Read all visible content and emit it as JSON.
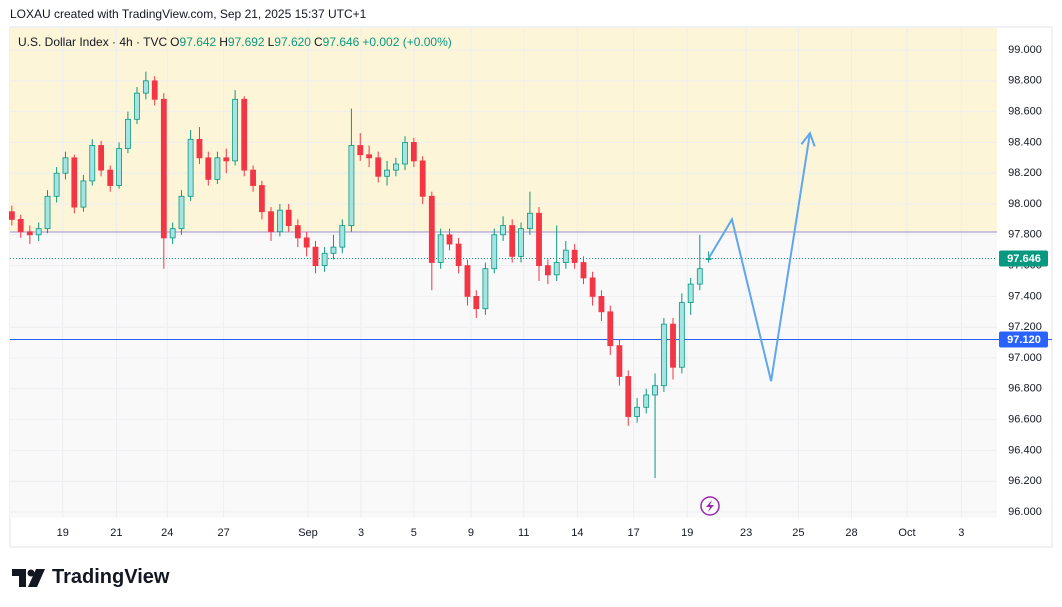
{
  "credit": "LOXAU created with TradingView.com, Sep 21, 2025 15:37 UTC+1",
  "brand": "TradingView",
  "chart_data": {
    "type": "candlestick",
    "header": {
      "symbol": "U.S. Dollar Index · 4h · TVC",
      "fields": [
        {
          "key": "O",
          "value": "97.642"
        },
        {
          "key": "H",
          "value": "97.692"
        },
        {
          "key": "L",
          "value": "97.620"
        },
        {
          "key": "C",
          "value": "97.646"
        }
      ],
      "change": "+0.002 (+0.00%)"
    },
    "x": [
      -0.9,
      -0.57,
      -0.23,
      0.1,
      0.43,
      0.77,
      1.1,
      1.43,
      1.77,
      2.1,
      2.43,
      2.77,
      3.1,
      3.43,
      3.77,
      4.1,
      4.43,
      4.77,
      5.1,
      5.43,
      5.77,
      6.1,
      6.43,
      6.77,
      7.1,
      7.43,
      7.77,
      8.1,
      8.43,
      8.77,
      9.1,
      9.43,
      9.77,
      10.1,
      10.43,
      10.77,
      11.1,
      11.43,
      11.77,
      12.1,
      12.43,
      12.77,
      13.1,
      13.43,
      13.77,
      14.1,
      14.43,
      14.77,
      15.1,
      15.43,
      15.77,
      16.1,
      16.43,
      16.77,
      17.1,
      17.43,
      17.77,
      18.1,
      18.43,
      18.77,
      19.1,
      19.43,
      19.77,
      20.1,
      20.43,
      20.77,
      21.1,
      21.43,
      21.77,
      22.1,
      22.43,
      22.77,
      23.1,
      23.43,
      23.77,
      24.1,
      24.43,
      24.77,
      25.1
    ],
    "open": [
      97.95,
      97.9,
      97.82,
      97.8,
      97.84,
      98.05,
      98.2,
      98.3,
      97.98,
      98.15,
      98.38,
      98.22,
      98.12,
      98.36,
      98.55,
      98.72,
      98.8,
      98.68,
      97.78,
      97.84,
      98.05,
      98.42,
      98.3,
      98.16,
      98.3,
      98.28,
      98.68,
      98.22,
      98.12,
      97.95,
      97.82,
      97.96,
      97.86,
      97.78,
      97.72,
      97.6,
      97.68,
      97.72,
      97.86,
      98.38,
      98.32,
      98.3,
      98.18,
      98.22,
      98.26,
      98.4,
      98.28,
      98.05,
      97.62,
      97.8,
      97.74,
      97.6,
      97.4,
      97.32,
      97.58,
      97.8,
      97.86,
      97.66,
      97.84,
      97.94,
      97.6,
      97.54,
      97.62,
      97.7,
      97.62,
      97.52,
      97.4,
      97.3,
      97.08,
      96.88,
      96.62,
      96.68,
      96.76,
      96.82,
      97.22,
      96.94,
      97.36,
      97.48,
      97.642
    ],
    "high": [
      97.99,
      97.93,
      97.86,
      97.88,
      98.09,
      98.24,
      98.34,
      98.32,
      98.19,
      98.42,
      98.41,
      98.25,
      98.4,
      98.6,
      98.76,
      98.86,
      98.83,
      98.72,
      97.88,
      98.09,
      98.48,
      98.5,
      98.34,
      98.34,
      98.36,
      98.74,
      98.7,
      98.25,
      98.15,
      97.98,
      98.0,
      98.0,
      97.9,
      97.82,
      97.76,
      97.72,
      97.8,
      97.9,
      98.62,
      98.46,
      98.38,
      98.34,
      98.28,
      98.3,
      98.44,
      98.43,
      98.31,
      98.08,
      97.84,
      97.84,
      97.78,
      97.64,
      97.44,
      97.62,
      97.84,
      97.92,
      97.9,
      97.88,
      98.08,
      97.98,
      97.64,
      97.86,
      97.76,
      97.74,
      97.66,
      97.56,
      97.44,
      97.34,
      97.12,
      96.92,
      96.74,
      96.8,
      96.9,
      97.26,
      97.26,
      97.42,
      97.52,
      97.8,
      97.692
    ],
    "low": [
      97.86,
      97.78,
      97.74,
      97.76,
      97.81,
      98.01,
      98.16,
      97.94,
      97.95,
      98.12,
      98.18,
      98.08,
      98.1,
      98.33,
      98.52,
      98.68,
      98.64,
      97.58,
      97.74,
      97.8,
      98.02,
      98.26,
      98.12,
      98.13,
      98.2,
      98.25,
      98.18,
      98.08,
      97.9,
      97.76,
      97.79,
      97.82,
      97.72,
      97.66,
      97.55,
      97.56,
      97.64,
      97.68,
      97.82,
      98.28,
      98.24,
      98.14,
      98.12,
      98.18,
      98.22,
      98.24,
      98.0,
      97.44,
      97.58,
      97.7,
      97.55,
      97.34,
      97.26,
      97.28,
      97.55,
      97.76,
      97.62,
      97.62,
      97.8,
      97.5,
      97.48,
      97.5,
      97.58,
      97.58,
      97.48,
      97.34,
      97.24,
      97.02,
      96.82,
      96.56,
      96.58,
      96.64,
      96.22,
      96.78,
      96.86,
      96.9,
      97.28,
      97.44,
      97.62
    ],
    "close": [
      97.9,
      97.82,
      97.8,
      97.84,
      98.05,
      98.2,
      98.3,
      97.98,
      98.15,
      98.38,
      98.22,
      98.12,
      98.36,
      98.55,
      98.72,
      98.8,
      98.68,
      97.78,
      97.84,
      98.05,
      98.42,
      98.3,
      98.16,
      98.3,
      98.28,
      98.68,
      98.22,
      98.12,
      97.95,
      97.82,
      97.96,
      97.86,
      97.78,
      97.72,
      97.6,
      97.68,
      97.72,
      97.86,
      98.38,
      98.32,
      98.3,
      98.18,
      98.22,
      98.26,
      98.4,
      98.28,
      98.05,
      97.62,
      97.8,
      97.74,
      97.6,
      97.4,
      97.32,
      97.58,
      97.8,
      97.86,
      97.66,
      97.84,
      97.94,
      97.6,
      97.54,
      97.62,
      97.7,
      97.62,
      97.52,
      97.4,
      97.3,
      97.08,
      96.88,
      96.62,
      96.68,
      96.76,
      96.82,
      97.22,
      96.94,
      97.36,
      97.48,
      97.58,
      97.646
    ],
    "up_color": "#089981",
    "up_fill": "#a6e3e3",
    "down_color": "#f23645",
    "xlim": [
      -0.97,
      35.86
    ],
    "xticks": [
      {
        "value": 1,
        "label": "19"
      },
      {
        "value": 3,
        "label": "21"
      },
      {
        "value": 4.9,
        "label": "24"
      },
      {
        "value": 7,
        "label": "27"
      },
      {
        "value": 10.15,
        "label": "Sep"
      },
      {
        "value": 12.13,
        "label": "3"
      },
      {
        "value": 14.1,
        "label": "5"
      },
      {
        "value": 16.23,
        "label": "9"
      },
      {
        "value": 18.2,
        "label": "11"
      },
      {
        "value": 20.2,
        "label": "14"
      },
      {
        "value": 22.3,
        "label": "17"
      },
      {
        "value": 24.3,
        "label": "19"
      },
      {
        "value": 26.5,
        "label": "23"
      },
      {
        "value": 28.45,
        "label": "25"
      },
      {
        "value": 30.43,
        "label": "28"
      },
      {
        "value": 32.5,
        "label": "Oct"
      },
      {
        "value": 34.53,
        "label": "3"
      }
    ],
    "ylim": [
      95.961,
      99.143
    ],
    "yticks": [
      {
        "value": 96,
        "label": "96.000"
      },
      {
        "value": 96.2,
        "label": "96.200"
      },
      {
        "value": 96.4,
        "label": "96.400"
      },
      {
        "value": 96.6,
        "label": "96.600"
      },
      {
        "value": 96.8,
        "label": "96.800"
      },
      {
        "value": 97,
        "label": "97.000"
      },
      {
        "value": 97.2,
        "label": "97.200"
      },
      {
        "value": 97.4,
        "label": "97.400"
      },
      {
        "value": 97.6,
        "label": "97.600"
      },
      {
        "value": 97.8,
        "label": "97.800"
      },
      {
        "value": 98,
        "label": "98.000"
      },
      {
        "value": 98.2,
        "label": "98.200"
      },
      {
        "value": 98.4,
        "label": "98.400"
      },
      {
        "value": 98.6,
        "label": "98.600"
      },
      {
        "value": 98.8,
        "label": "98.800"
      },
      {
        "value": 99,
        "label": "99.000"
      }
    ],
    "grid": true,
    "resistance": {
      "value": 97.818,
      "color": "#9c8fd6",
      "fill": "#fdf5d7"
    },
    "support": {
      "value": 97.12,
      "label": "97.120",
      "color": "#2962ff"
    },
    "last_price": {
      "value": 97.646,
      "label": "97.646",
      "color": "#089981"
    },
    "projection": {
      "x": [
        25.11,
        25.97,
        27.43,
        28.88
      ],
      "y": [
        97.65,
        97.9,
        96.85,
        98.46
      ],
      "color": "#5ea7f0"
    }
  }
}
